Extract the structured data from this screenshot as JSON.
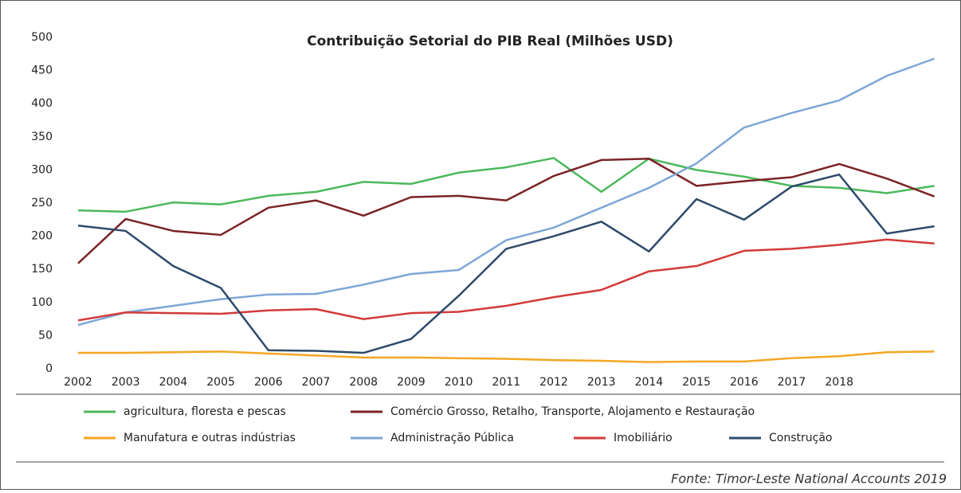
{
  "chart_data": {
    "type": "line",
    "title": "Contribuição Setorial do PIB Real (Milhões USD)",
    "source": "Fonte: Timor-Leste National Accounts 2019",
    "categories": [
      "2002",
      "2003",
      "2004",
      "2005",
      "2006",
      "2007",
      "2008",
      "2009",
      "2010",
      "2011",
      "2012",
      "2013",
      "2014",
      "2015",
      "2016",
      "2017",
      "2018",
      null,
      null
    ],
    "ylim": [
      0,
      500
    ],
    "yticks": [
      0,
      50,
      100,
      150,
      200,
      250,
      300,
      350,
      400,
      450,
      500
    ],
    "grid": false,
    "series": [
      {
        "name": "agricultura, floresta e pescas",
        "color": "#4cb95c",
        "values": [
          239,
          237,
          251,
          248,
          261,
          267,
          282,
          279,
          296,
          304,
          318,
          267,
          317,
          300,
          290,
          276,
          273,
          265,
          276
        ]
      },
      {
        "name": "Comércio Grosso, Retalho, Transporte, Alojamento e Restauração",
        "color": "#7b2326",
        "values": [
          159,
          226,
          208,
          202,
          243,
          254,
          231,
          259,
          261,
          254,
          291,
          315,
          317,
          276,
          283,
          289,
          309,
          287,
          260
        ]
      },
      {
        "name": "Manufatura e outras indústrias",
        "color": "#f5a623",
        "values": [
          24,
          24,
          25,
          26,
          23,
          20,
          17,
          17,
          16,
          15,
          13,
          12,
          10,
          11,
          11,
          16,
          19,
          25,
          26
        ]
      },
      {
        "name": "Administração Pública",
        "color": "#7ea6d6",
        "values": [
          66,
          85,
          95,
          105,
          112,
          113,
          127,
          143,
          149,
          194,
          213,
          243,
          273,
          310,
          364,
          386,
          405,
          442,
          468
        ]
      },
      {
        "name": "Imobiliário",
        "color": "#d33a3a",
        "values": [
          73,
          85,
          84,
          83,
          88,
          90,
          75,
          84,
          86,
          95,
          108,
          119,
          147,
          155,
          178,
          181,
          187,
          195,
          189
        ]
      },
      {
        "name": "Construção",
        "color": "#2e4a6b",
        "values": [
          216,
          208,
          155,
          122,
          28,
          27,
          24,
          45,
          110,
          181,
          200,
          222,
          177,
          256,
          225,
          275,
          293,
          204,
          215
        ]
      }
    ]
  }
}
